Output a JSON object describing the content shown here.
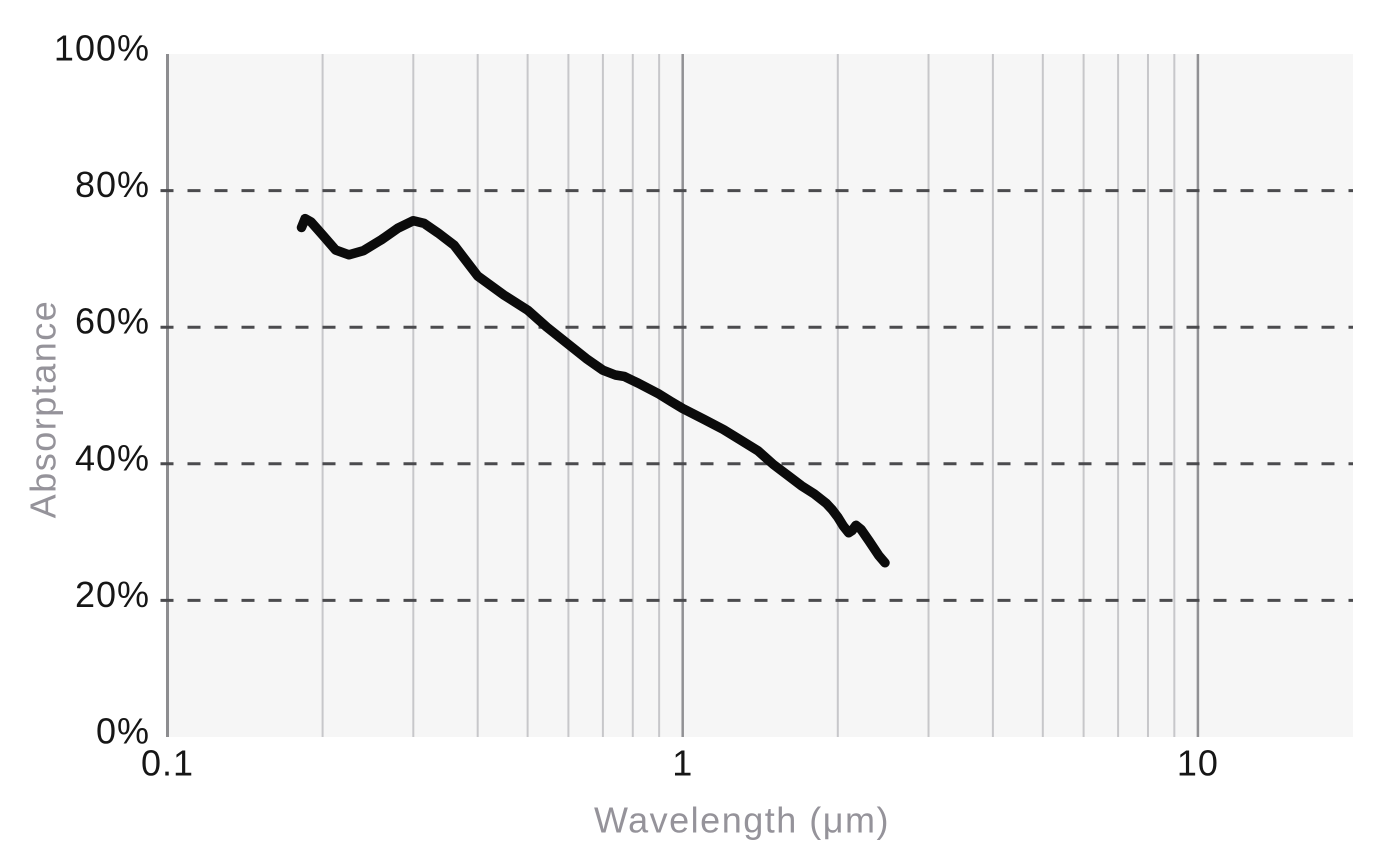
{
  "figure": {
    "description": "Absorptance versus wavelength line chart"
  },
  "colors": {
    "page_background": "#ffffff",
    "plot_background": "#f6f6f6",
    "grid_minor": "#c7c7ca",
    "grid_major": "#919194",
    "axis_line": "#8d8d90",
    "dashed_gridline": "#4b4b4e",
    "tick_label": "#161616",
    "axis_title": "#95939a",
    "curve": "#0b0b0b"
  },
  "chart_data": {
    "type": "line",
    "title": "",
    "xlabel": "Wavelength (μm)",
    "ylabel": "Absorptance",
    "x_scale": "log",
    "x_range": [
      0.1,
      20
    ],
    "y_range": [
      0,
      100
    ],
    "grid": true,
    "legend_position": "none",
    "x_ticks": [
      {
        "value": 0.1,
        "label": "0.1"
      },
      {
        "value": 1,
        "label": "1"
      },
      {
        "value": 10,
        "label": "10"
      }
    ],
    "y_ticks": [
      {
        "value": 0,
        "label": "0%"
      },
      {
        "value": 20,
        "label": "20%"
      },
      {
        "value": 40,
        "label": "40%"
      },
      {
        "value": 60,
        "label": "60%"
      },
      {
        "value": 80,
        "label": "80%"
      },
      {
        "value": 100,
        "label": "100%"
      }
    ],
    "x_gridlines_minor": [
      0.2,
      0.3,
      0.4,
      0.5,
      0.6,
      0.7,
      0.8,
      0.9,
      2,
      3,
      4,
      5,
      6,
      7,
      8,
      9
    ],
    "x_gridlines_major": [
      1,
      10
    ],
    "y_gridlines_dashed": [
      20,
      40,
      60,
      80
    ],
    "series": [
      {
        "name": "Absorptance",
        "color": "#0b0b0b",
        "points": [
          [
            0.182,
            74.6
          ],
          [
            0.185,
            75.9
          ],
          [
            0.19,
            75.4
          ],
          [
            0.2,
            73.5
          ],
          [
            0.212,
            71.3
          ],
          [
            0.225,
            70.6
          ],
          [
            0.24,
            71.2
          ],
          [
            0.26,
            72.8
          ],
          [
            0.28,
            74.5
          ],
          [
            0.3,
            75.6
          ],
          [
            0.315,
            75.2
          ],
          [
            0.335,
            73.8
          ],
          [
            0.36,
            72.0
          ],
          [
            0.4,
            67.5
          ],
          [
            0.45,
            64.7
          ],
          [
            0.5,
            62.5
          ],
          [
            0.545,
            60.0
          ],
          [
            0.6,
            57.5
          ],
          [
            0.65,
            55.4
          ],
          [
            0.7,
            53.7
          ],
          [
            0.74,
            53.0
          ],
          [
            0.77,
            52.8
          ],
          [
            0.82,
            51.8
          ],
          [
            0.9,
            50.2
          ],
          [
            0.95,
            49.1
          ],
          [
            1.0,
            48.1
          ],
          [
            1.1,
            46.5
          ],
          [
            1.2,
            45.0
          ],
          [
            1.3,
            43.4
          ],
          [
            1.4,
            41.9
          ],
          [
            1.5,
            39.9
          ],
          [
            1.6,
            38.3
          ],
          [
            1.7,
            36.8
          ],
          [
            1.8,
            35.6
          ],
          [
            1.9,
            34.2
          ],
          [
            1.95,
            33.3
          ],
          [
            2.0,
            32.2
          ],
          [
            2.05,
            30.9
          ],
          [
            2.1,
            29.9
          ],
          [
            2.13,
            30.2
          ],
          [
            2.17,
            31.0
          ],
          [
            2.22,
            30.4
          ],
          [
            2.3,
            28.7
          ],
          [
            2.4,
            26.6
          ],
          [
            2.47,
            25.5
          ]
        ]
      }
    ]
  }
}
